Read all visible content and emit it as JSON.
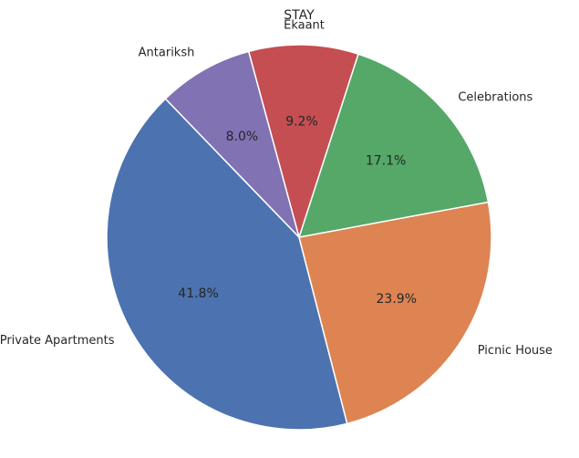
{
  "chart_data": {
    "type": "pie",
    "title": "STAY",
    "start_angle_deg": 134,
    "direction": "counterclockwise",
    "slices": [
      {
        "label": "Private Apartments",
        "value": 41.8,
        "pct_label": "41.8%",
        "color": "#4c72b0"
      },
      {
        "label": "Picnic House",
        "value": 23.9,
        "pct_label": "23.9%",
        "color": "#dd8452"
      },
      {
        "label": "Celebrations",
        "value": 17.1,
        "pct_label": "17.1%",
        "color": "#55a868"
      },
      {
        "label": "Ekaant",
        "value": 9.2,
        "pct_label": "9.2%",
        "color": "#c44e52"
      },
      {
        "label": "Antariksh",
        "value": 8.0,
        "pct_label": "8.0%",
        "color": "#8172b3"
      }
    ]
  }
}
